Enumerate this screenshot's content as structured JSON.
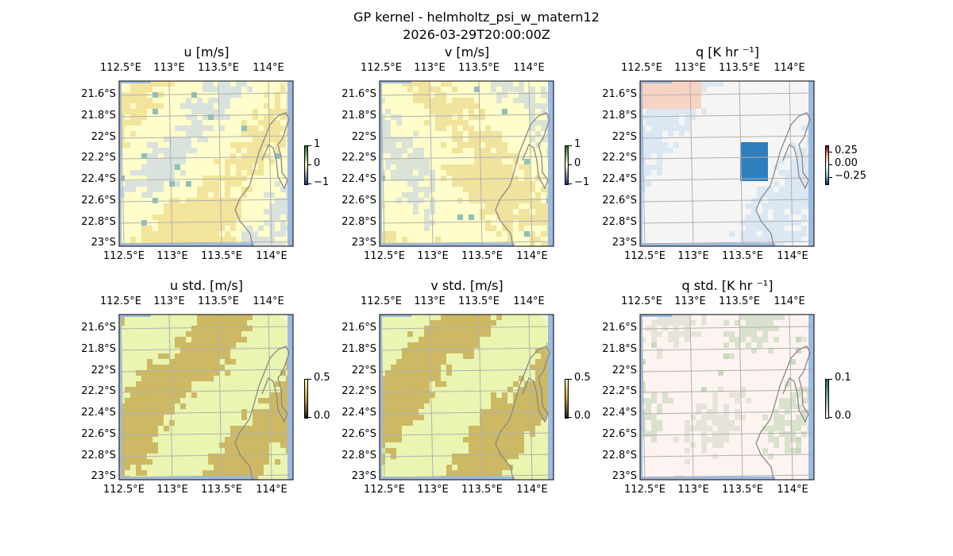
{
  "suptitle": "GP kernel - helmholtz_psi_w_matern12",
  "subtitle": "2026-03-29T20:00:00Z",
  "chart_data": [
    {
      "type": "heatmap",
      "title": "u [m/s]",
      "xticks": [
        "112.5°E",
        "113°E",
        "113.5°E",
        "114°E"
      ],
      "yticks": [
        "21.6°S",
        "21.8°S",
        "22°S",
        "22.2°S",
        "22.4°S",
        "22.6°S",
        "22.8°S",
        "23°S"
      ],
      "colorbar": {
        "ticks": [
          "1",
          "0",
          "−1"
        ],
        "range": [
          -1,
          1
        ]
      },
      "palette": {
        "base": "#fffdc9",
        "a": "#f3e49c",
        "b": "#d9e2dc",
        "accent": "#8fc0b8"
      }
    },
    {
      "type": "heatmap",
      "title": "v [m/s]",
      "xticks": [
        "112.5°E",
        "113°E",
        "113.5°E",
        "114°E"
      ],
      "yticks": [
        "21.6°S",
        "21.8°S",
        "22°S",
        "22.2°S",
        "22.4°S",
        "22.6°S",
        "22.8°S",
        "23°S"
      ],
      "colorbar": {
        "ticks": [
          "1",
          "0",
          "−1"
        ],
        "range": [
          -1,
          1
        ]
      },
      "palette": {
        "base": "#fffdc9",
        "a": "#efe39e",
        "b": "#dbe3d6",
        "accent": "#8fc0b8"
      }
    },
    {
      "type": "heatmap",
      "title": "q [K hr ⁻¹]",
      "xticks": [
        "112.5°E",
        "113°E",
        "113.5°E",
        "114°E"
      ],
      "yticks": [
        "21.6°S",
        "21.8°S",
        "22°S",
        "22.2°S",
        "22.4°S",
        "22.6°S",
        "22.8°S",
        "23°S"
      ],
      "colorbar": {
        "ticks": [
          "0.25",
          "0.00",
          "−0.25"
        ],
        "range": [
          -0.35,
          0.35
        ]
      },
      "palette": {
        "base": "#f5f5f5",
        "a": "#dbe8f3",
        "b": "#f6d3c3",
        "accent": "#2f7fbd"
      }
    },
    {
      "type": "heatmap",
      "title": "u std. [m/s]",
      "xticks": [
        "112.5°E",
        "113°E",
        "113.5°E",
        "114°E"
      ],
      "yticks": [
        "21.6°S",
        "21.8°S",
        "22°S",
        "22.2°S",
        "22.4°S",
        "22.6°S",
        "22.8°S",
        "23°S"
      ],
      "colorbar": {
        "ticks": [
          "0.5",
          "0.0"
        ],
        "range": [
          0,
          0.5
        ]
      },
      "palette": {
        "base": "#e9f5b0",
        "a": "#cdb964",
        "b": "#cdb964",
        "accent": "#c8b560"
      }
    },
    {
      "type": "heatmap",
      "title": "v std. [m/s]",
      "xticks": [
        "112.5°E",
        "113°E",
        "113.5°E",
        "114°E"
      ],
      "yticks": [
        "21.6°S",
        "21.8°S",
        "22°S",
        "22.2°S",
        "22.4°S",
        "22.6°S",
        "22.8°S",
        "23°S"
      ],
      "colorbar": {
        "ticks": [
          "0.5",
          "0.0"
        ],
        "range": [
          0,
          0.5
        ]
      },
      "palette": {
        "base": "#e9f5b0",
        "a": "#cdb964",
        "b": "#cdb964",
        "accent": "#c8b560"
      }
    },
    {
      "type": "heatmap",
      "title": "q std. [K hr ⁻¹]",
      "xticks": [
        "112.5°E",
        "113°E",
        "113.5°E",
        "114°E"
      ],
      "yticks": [
        "21.6°S",
        "21.8°S",
        "22°S",
        "22.2°S",
        "22.4°S",
        "22.6°S",
        "22.8°S",
        "23°S"
      ],
      "colorbar": {
        "ticks": [
          "0.1",
          "0.0"
        ],
        "range": [
          0,
          0.1
        ]
      },
      "palette": {
        "base": "#fdf3f0",
        "a": "#e6e4da",
        "b": "#d9e2cc",
        "accent": "#c9d9bd"
      }
    }
  ]
}
